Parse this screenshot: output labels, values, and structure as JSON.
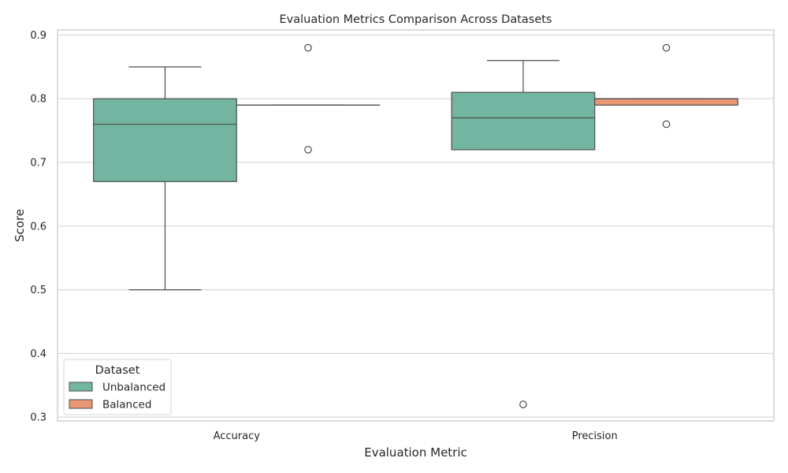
{
  "chart_data": {
    "type": "box",
    "title": "Evaluation Metrics Comparison Across Datasets",
    "xlabel": "Evaluation Metric",
    "ylabel": "Score",
    "categories": [
      "Accuracy",
      "Precision"
    ],
    "ylim": [
      0.294,
      0.908
    ],
    "yticks": [
      0.3,
      0.4,
      0.5,
      0.6,
      0.7,
      0.8,
      0.9
    ],
    "ytick_labels": [
      "0.3",
      "0.4",
      "0.5",
      "0.6",
      "0.7",
      "0.8",
      "0.9"
    ],
    "grid": true,
    "legend": {
      "title": "Dataset",
      "placement": "lower-left"
    },
    "series": [
      {
        "name": "Unbalanced",
        "color": "#72b6a1",
        "boxes": [
          {
            "category": "Accuracy",
            "whisker_low": 0.5,
            "q1": 0.67,
            "median": 0.76,
            "q3": 0.8,
            "whisker_high": 0.85,
            "outliers": []
          },
          {
            "category": "Precision",
            "whisker_low": 0.72,
            "q1": 0.72,
            "median": 0.77,
            "q3": 0.81,
            "whisker_high": 0.86,
            "outliers": [
              0.32
            ]
          }
        ]
      },
      {
        "name": "Balanced",
        "color": "#e99675",
        "boxes": [
          {
            "category": "Accuracy",
            "whisker_low": 0.79,
            "q1": 0.79,
            "median": 0.79,
            "q3": 0.79,
            "whisker_high": 0.79,
            "outliers": [
              0.88,
              0.72
            ]
          },
          {
            "category": "Precision",
            "whisker_low": 0.79,
            "q1": 0.79,
            "median": 0.8,
            "q3": 0.8,
            "whisker_high": 0.8,
            "outliers": [
              0.88,
              0.76
            ]
          }
        ]
      }
    ]
  },
  "colors": {
    "grid": "#d9d9d9",
    "box_edge": "#4d4d4d",
    "spine": "#d0d0d0"
  }
}
